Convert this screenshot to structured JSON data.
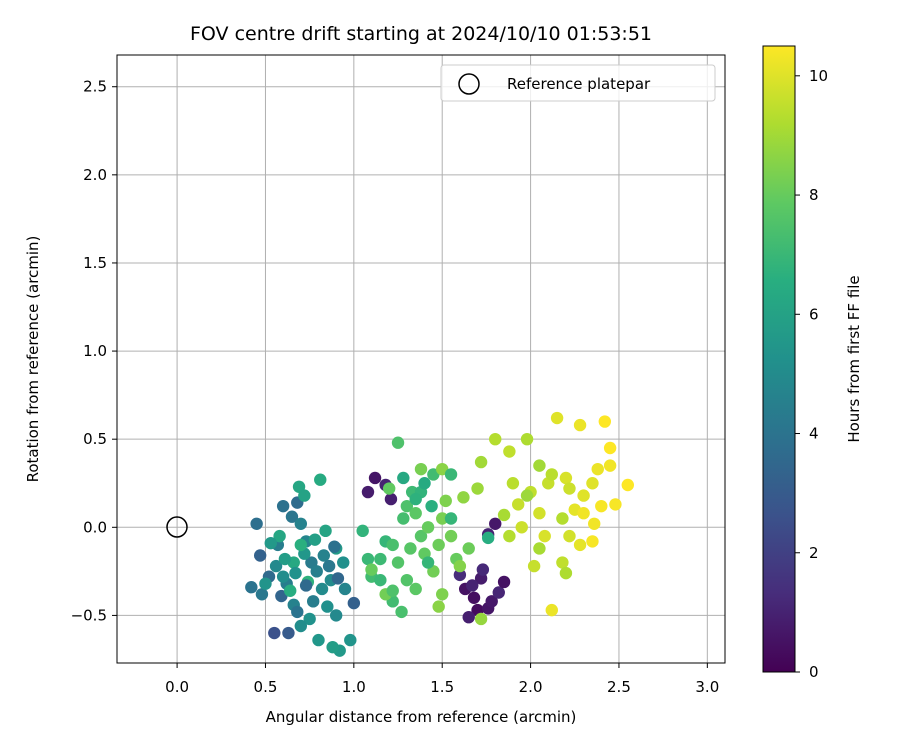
{
  "chart_data": {
    "type": "scatter",
    "title": "FOV centre drift starting at 2024/10/10 01:53:51",
    "xlabel": "Angular distance from reference (arcmin)",
    "ylabel": "Rotation from reference (arcmin)",
    "xlim": [
      -0.34,
      3.1
    ],
    "ylim": [
      -0.77,
      2.68
    ],
    "xticks": [
      0.0,
      0.5,
      1.0,
      1.5,
      2.0,
      2.5,
      3.0
    ],
    "xtick_labels": [
      "0.0",
      "0.5",
      "1.0",
      "1.5",
      "2.0",
      "2.5",
      "3.0"
    ],
    "yticks": [
      -0.5,
      0.0,
      0.5,
      1.0,
      1.5,
      2.0,
      2.5
    ],
    "ytick_labels": [
      "−0.5",
      "0.0",
      "0.5",
      "1.0",
      "1.5",
      "2.0",
      "2.5"
    ],
    "grid": true,
    "legend": {
      "placement": "top-right",
      "entries": [
        "Reference platepar"
      ]
    },
    "reference_point": {
      "x": 0.0,
      "y": 0.0
    },
    "colorbar": {
      "label": "Hours from first FF file",
      "range": [
        0,
        10.5
      ],
      "ticks": [
        0,
        2,
        4,
        6,
        8,
        10
      ],
      "tick_labels": [
        "0",
        "2",
        "4",
        "6",
        "8",
        "10"
      ],
      "colormap": "viridis"
    },
    "points": [
      {
        "x": 1.12,
        "y": 0.28,
        "h": 0.6
      },
      {
        "x": 1.08,
        "y": 0.2,
        "h": 0.8
      },
      {
        "x": 1.18,
        "y": 0.24,
        "h": 1.0
      },
      {
        "x": 1.21,
        "y": 0.16,
        "h": 0.9
      },
      {
        "x": 1.63,
        "y": -0.35,
        "h": 0.5
      },
      {
        "x": 1.68,
        "y": -0.4,
        "h": 0.4
      },
      {
        "x": 1.7,
        "y": -0.47,
        "h": 0.3
      },
      {
        "x": 1.76,
        "y": -0.46,
        "h": 0.6
      },
      {
        "x": 1.72,
        "y": -0.29,
        "h": 0.8
      },
      {
        "x": 1.67,
        "y": -0.33,
        "h": 1.0
      },
      {
        "x": 1.78,
        "y": -0.42,
        "h": 0.7
      },
      {
        "x": 1.82,
        "y": -0.37,
        "h": 1.1
      },
      {
        "x": 1.85,
        "y": -0.31,
        "h": 0.5
      },
      {
        "x": 1.65,
        "y": -0.51,
        "h": 0.9
      },
      {
        "x": 1.73,
        "y": -0.24,
        "h": 1.2
      },
      {
        "x": 1.6,
        "y": -0.27,
        "h": 1.3
      },
      {
        "x": 1.8,
        "y": 0.02,
        "h": 0.7
      },
      {
        "x": 1.76,
        "y": -0.04,
        "h": 1.0
      },
      {
        "x": 0.55,
        "y": -0.6,
        "h": 2.6
      },
      {
        "x": 0.63,
        "y": -0.6,
        "h": 3.0
      },
      {
        "x": 0.59,
        "y": -0.39,
        "h": 3.4
      },
      {
        "x": 0.52,
        "y": -0.28,
        "h": 3.6
      },
      {
        "x": 0.47,
        "y": -0.16,
        "h": 3.3
      },
      {
        "x": 0.45,
        "y": 0.02,
        "h": 3.8
      },
      {
        "x": 0.42,
        "y": -0.34,
        "h": 4.0
      },
      {
        "x": 0.48,
        "y": -0.38,
        "h": 4.2
      },
      {
        "x": 0.57,
        "y": -0.1,
        "h": 4.4
      },
      {
        "x": 0.6,
        "y": 0.12,
        "h": 3.9
      },
      {
        "x": 0.65,
        "y": 0.06,
        "h": 4.1
      },
      {
        "x": 0.68,
        "y": 0.14,
        "h": 3.7
      },
      {
        "x": 0.7,
        "y": 0.02,
        "h": 4.6
      },
      {
        "x": 0.73,
        "y": -0.08,
        "h": 4.8
      },
      {
        "x": 0.76,
        "y": -0.2,
        "h": 4.3
      },
      {
        "x": 0.79,
        "y": -0.25,
        "h": 4.5
      },
      {
        "x": 0.82,
        "y": -0.35,
        "h": 5.0
      },
      {
        "x": 0.85,
        "y": -0.45,
        "h": 5.2
      },
      {
        "x": 0.9,
        "y": -0.5,
        "h": 4.9
      },
      {
        "x": 0.95,
        "y": -0.35,
        "h": 4.7
      },
      {
        "x": 0.98,
        "y": -0.64,
        "h": 5.4
      },
      {
        "x": 0.92,
        "y": -0.7,
        "h": 5.6
      },
      {
        "x": 0.88,
        "y": -0.68,
        "h": 5.8
      },
      {
        "x": 0.8,
        "y": -0.64,
        "h": 5.5
      },
      {
        "x": 0.75,
        "y": -0.52,
        "h": 5.3
      },
      {
        "x": 0.7,
        "y": -0.56,
        "h": 5.1
      },
      {
        "x": 0.66,
        "y": -0.44,
        "h": 4.6
      },
      {
        "x": 0.62,
        "y": -0.32,
        "h": 4.4
      },
      {
        "x": 0.56,
        "y": -0.22,
        "h": 4.9
      },
      {
        "x": 0.6,
        "y": -0.28,
        "h": 5.1
      },
      {
        "x": 0.72,
        "y": -0.15,
        "h": 5.5
      },
      {
        "x": 0.78,
        "y": -0.07,
        "h": 5.9
      },
      {
        "x": 0.84,
        "y": -0.02,
        "h": 6.1
      },
      {
        "x": 0.9,
        "y": -0.12,
        "h": 5.7
      },
      {
        "x": 0.94,
        "y": -0.2,
        "h": 5.2
      },
      {
        "x": 0.87,
        "y": -0.3,
        "h": 5.0
      },
      {
        "x": 0.69,
        "y": 0.23,
        "h": 6.2
      },
      {
        "x": 0.72,
        "y": 0.18,
        "h": 6.0
      },
      {
        "x": 0.81,
        "y": 0.27,
        "h": 6.4
      },
      {
        "x": 0.66,
        "y": -0.2,
        "h": 6.3
      },
      {
        "x": 0.64,
        "y": -0.36,
        "h": 6.5
      },
      {
        "x": 0.74,
        "y": -0.31,
        "h": 6.7
      },
      {
        "x": 0.7,
        "y": -0.1,
        "h": 6.6
      },
      {
        "x": 0.58,
        "y": -0.05,
        "h": 6.2
      },
      {
        "x": 0.61,
        "y": -0.18,
        "h": 5.8
      },
      {
        "x": 0.53,
        "y": -0.09,
        "h": 5.6
      },
      {
        "x": 0.5,
        "y": -0.32,
        "h": 5.4
      },
      {
        "x": 0.67,
        "y": -0.26,
        "h": 5.3
      },
      {
        "x": 0.83,
        "y": -0.16,
        "h": 4.6
      },
      {
        "x": 0.86,
        "y": -0.22,
        "h": 4.2
      },
      {
        "x": 0.77,
        "y": -0.42,
        "h": 4.4
      },
      {
        "x": 0.68,
        "y": -0.48,
        "h": 4.0
      },
      {
        "x": 0.73,
        "y": -0.33,
        "h": 3.6
      },
      {
        "x": 1.0,
        "y": -0.43,
        "h": 3.2
      },
      {
        "x": 0.91,
        "y": -0.29,
        "h": 3.5
      },
      {
        "x": 0.89,
        "y": -0.11,
        "h": 3.9
      },
      {
        "x": 1.05,
        "y": -0.02,
        "h": 6.8
      },
      {
        "x": 1.08,
        "y": -0.18,
        "h": 7.0
      },
      {
        "x": 1.1,
        "y": -0.28,
        "h": 7.2
      },
      {
        "x": 1.15,
        "y": -0.18,
        "h": 7.1
      },
      {
        "x": 1.18,
        "y": -0.08,
        "h": 6.9
      },
      {
        "x": 1.22,
        "y": -0.1,
        "h": 7.4
      },
      {
        "x": 1.25,
        "y": -0.2,
        "h": 7.6
      },
      {
        "x": 1.28,
        "y": 0.05,
        "h": 7.3
      },
      {
        "x": 1.3,
        "y": 0.12,
        "h": 7.5
      },
      {
        "x": 1.33,
        "y": 0.2,
        "h": 7.1
      },
      {
        "x": 1.35,
        "y": 0.08,
        "h": 7.8
      },
      {
        "x": 1.38,
        "y": -0.05,
        "h": 7.7
      },
      {
        "x": 1.4,
        "y": -0.15,
        "h": 7.9
      },
      {
        "x": 1.42,
        "y": 0.0,
        "h": 8.0
      },
      {
        "x": 1.45,
        "y": -0.25,
        "h": 8.2
      },
      {
        "x": 1.48,
        "y": -0.1,
        "h": 8.1
      },
      {
        "x": 1.5,
        "y": 0.05,
        "h": 8.3
      },
      {
        "x": 1.52,
        "y": 0.15,
        "h": 8.4
      },
      {
        "x": 1.55,
        "y": -0.05,
        "h": 8.2
      },
      {
        "x": 1.58,
        "y": -0.18,
        "h": 8.0
      },
      {
        "x": 1.3,
        "y": -0.3,
        "h": 7.6
      },
      {
        "x": 1.35,
        "y": -0.35,
        "h": 7.8
      },
      {
        "x": 1.27,
        "y": -0.48,
        "h": 7.4
      },
      {
        "x": 1.22,
        "y": -0.42,
        "h": 7.2
      },
      {
        "x": 1.15,
        "y": -0.3,
        "h": 7.0
      },
      {
        "x": 1.2,
        "y": 0.22,
        "h": 7.9
      },
      {
        "x": 1.25,
        "y": 0.48,
        "h": 7.5
      },
      {
        "x": 1.38,
        "y": 0.33,
        "h": 8.3
      },
      {
        "x": 1.45,
        "y": 0.3,
        "h": 7.2
      },
      {
        "x": 1.5,
        "y": 0.33,
        "h": 8.6
      },
      {
        "x": 1.55,
        "y": 0.3,
        "h": 7.0
      },
      {
        "x": 1.6,
        "y": -0.22,
        "h": 8.5
      },
      {
        "x": 1.62,
        "y": 0.17,
        "h": 8.7
      },
      {
        "x": 1.7,
        "y": 0.22,
        "h": 8.9
      },
      {
        "x": 1.72,
        "y": 0.37,
        "h": 9.0
      },
      {
        "x": 1.65,
        "y": -0.12,
        "h": 8.1
      },
      {
        "x": 1.48,
        "y": -0.45,
        "h": 8.6
      },
      {
        "x": 1.72,
        "y": -0.52,
        "h": 8.8
      },
      {
        "x": 1.5,
        "y": -0.38,
        "h": 8.4
      },
      {
        "x": 1.42,
        "y": -0.2,
        "h": 6.9
      },
      {
        "x": 1.32,
        "y": -0.12,
        "h": 7.7
      },
      {
        "x": 1.38,
        "y": 0.2,
        "h": 6.8
      },
      {
        "x": 1.44,
        "y": 0.12,
        "h": 6.6
      },
      {
        "x": 1.4,
        "y": 0.25,
        "h": 6.4
      },
      {
        "x": 1.35,
        "y": 0.16,
        "h": 6.7
      },
      {
        "x": 1.28,
        "y": 0.28,
        "h": 6.3
      },
      {
        "x": 1.55,
        "y": 0.05,
        "h": 6.9
      },
      {
        "x": 1.76,
        "y": -0.06,
        "h": 6.5
      },
      {
        "x": 1.18,
        "y": -0.38,
        "h": 8.2
      },
      {
        "x": 1.22,
        "y": -0.36,
        "h": 7.5
      },
      {
        "x": 1.1,
        "y": -0.24,
        "h": 8.0
      },
      {
        "x": 1.8,
        "y": 0.5,
        "h": 9.3
      },
      {
        "x": 1.88,
        "y": 0.43,
        "h": 9.5
      },
      {
        "x": 1.98,
        "y": 0.5,
        "h": 9.2
      },
      {
        "x": 1.9,
        "y": 0.25,
        "h": 9.4
      },
      {
        "x": 1.93,
        "y": 0.13,
        "h": 9.6
      },
      {
        "x": 1.85,
        "y": 0.07,
        "h": 9.1
      },
      {
        "x": 1.88,
        "y": -0.05,
        "h": 9.3
      },
      {
        "x": 1.95,
        "y": 0.0,
        "h": 9.7
      },
      {
        "x": 2.0,
        "y": 0.2,
        "h": 9.5
      },
      {
        "x": 2.05,
        "y": 0.08,
        "h": 9.8
      },
      {
        "x": 2.08,
        "y": -0.05,
        "h": 9.9
      },
      {
        "x": 2.1,
        "y": 0.25,
        "h": 9.6
      },
      {
        "x": 2.12,
        "y": 0.3,
        "h": 9.4
      },
      {
        "x": 2.15,
        "y": 0.62,
        "h": 10.0
      },
      {
        "x": 2.2,
        "y": 0.28,
        "h": 9.9
      },
      {
        "x": 2.25,
        "y": 0.1,
        "h": 10.1
      },
      {
        "x": 2.28,
        "y": 0.58,
        "h": 10.2
      },
      {
        "x": 2.3,
        "y": 0.08,
        "h": 10.3
      },
      {
        "x": 2.35,
        "y": 0.25,
        "h": 10.0
      },
      {
        "x": 2.4,
        "y": 0.12,
        "h": 10.4
      },
      {
        "x": 2.45,
        "y": 0.45,
        "h": 10.5
      },
      {
        "x": 2.45,
        "y": 0.35,
        "h": 10.3
      },
      {
        "x": 2.48,
        "y": 0.13,
        "h": 10.4
      },
      {
        "x": 2.55,
        "y": 0.24,
        "h": 10.5
      },
      {
        "x": 2.42,
        "y": 0.6,
        "h": 10.5
      },
      {
        "x": 2.38,
        "y": 0.33,
        "h": 10.2
      },
      {
        "x": 2.35,
        "y": -0.08,
        "h": 10.4
      },
      {
        "x": 2.28,
        "y": -0.1,
        "h": 10.1
      },
      {
        "x": 2.22,
        "y": -0.05,
        "h": 9.8
      },
      {
        "x": 2.18,
        "y": -0.2,
        "h": 9.5
      },
      {
        "x": 2.2,
        "y": -0.26,
        "h": 9.2
      },
      {
        "x": 2.12,
        "y": -0.47,
        "h": 10.2
      },
      {
        "x": 2.02,
        "y": -0.22,
        "h": 9.6
      },
      {
        "x": 2.05,
        "y": -0.12,
        "h": 9.1
      },
      {
        "x": 2.22,
        "y": 0.22,
        "h": 9.7
      },
      {
        "x": 2.18,
        "y": 0.05,
        "h": 9.3
      },
      {
        "x": 2.05,
        "y": 0.35,
        "h": 9.0
      },
      {
        "x": 1.98,
        "y": 0.18,
        "h": 8.9
      },
      {
        "x": 2.3,
        "y": 0.18,
        "h": 10.0
      },
      {
        "x": 2.36,
        "y": 0.02,
        "h": 10.3
      }
    ]
  }
}
